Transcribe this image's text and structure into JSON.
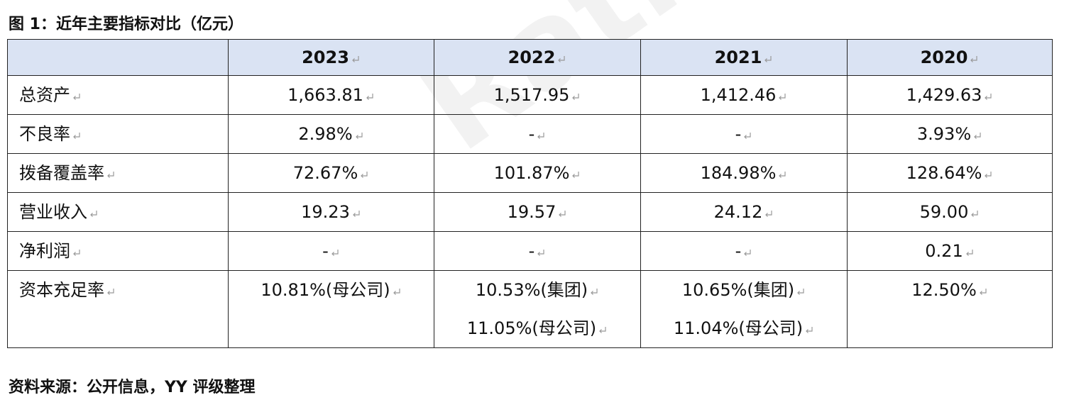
{
  "title": "图 1：近年主要指标对比（亿元）",
  "watermark": "Rating",
  "table": {
    "columns": [
      "2023",
      "2022",
      "2021",
      "2020"
    ],
    "rows": [
      {
        "label": "总资产",
        "cells": [
          [
            "1,663.81"
          ],
          [
            "1,517.95"
          ],
          [
            "1,412.46"
          ],
          [
            "1,429.63"
          ]
        ]
      },
      {
        "label": "不良率",
        "cells": [
          [
            "2.98%"
          ],
          [
            "-"
          ],
          [
            "-"
          ],
          [
            "3.93%"
          ]
        ]
      },
      {
        "label": "拨备覆盖率",
        "cells": [
          [
            "72.67%"
          ],
          [
            "101.87%"
          ],
          [
            "184.98%"
          ],
          [
            "128.64%"
          ]
        ]
      },
      {
        "label": "营业收入",
        "cells": [
          [
            "19.23"
          ],
          [
            "19.57"
          ],
          [
            "24.12"
          ],
          [
            "59.00"
          ]
        ]
      },
      {
        "label": "净利润",
        "cells": [
          [
            "-"
          ],
          [
            "-"
          ],
          [
            "-"
          ],
          [
            "0.21"
          ]
        ]
      },
      {
        "label": "资本充足率",
        "cells": [
          [
            "10.81%(母公司)"
          ],
          [
            "10.53%(集团)",
            "11.05%(母公司)"
          ],
          [
            "10.65%(集团)",
            "11.04%(母公司)"
          ],
          [
            "12.50%"
          ]
        ]
      }
    ]
  },
  "source": "资料来源：公开信息，YY 评级整理"
}
